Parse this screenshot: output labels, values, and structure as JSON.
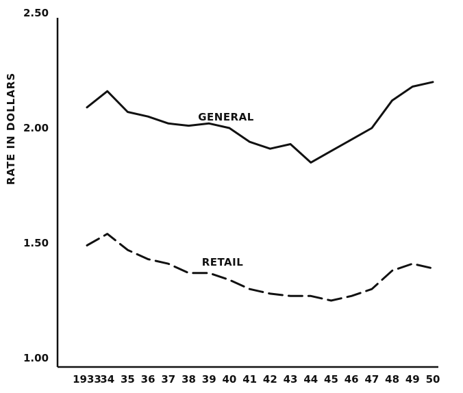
{
  "chart_data": {
    "type": "line",
    "title": "",
    "xlabel": "",
    "ylabel": "RATE IN DOLLARS",
    "x": [
      "1933",
      "34",
      "35",
      "36",
      "37",
      "38",
      "39",
      "40",
      "41",
      "42",
      "43",
      "44",
      "45",
      "46",
      "47",
      "48",
      "49",
      "50"
    ],
    "ylim": [
      1.0,
      2.5
    ],
    "yticks": [
      "1.00",
      "1.50",
      "2.00",
      "2.50"
    ],
    "grid": false,
    "legend": "none",
    "series": [
      {
        "name": "GENERAL",
        "style": "solid",
        "values": [
          2.09,
          2.16,
          2.07,
          2.05,
          2.02,
          2.01,
          2.02,
          2.0,
          1.94,
          1.91,
          1.93,
          1.85,
          1.9,
          1.95,
          2.0,
          2.12,
          2.18,
          2.2
        ]
      },
      {
        "name": "RETAIL",
        "style": "dashed",
        "values": [
          1.49,
          1.54,
          1.47,
          1.43,
          1.41,
          1.37,
          1.37,
          1.34,
          1.3,
          1.28,
          1.27,
          1.27,
          1.25,
          1.27,
          1.3,
          1.38,
          1.41,
          1.39
        ]
      }
    ],
    "colors": {
      "line": "#111111",
      "background": "#ffffff"
    }
  }
}
